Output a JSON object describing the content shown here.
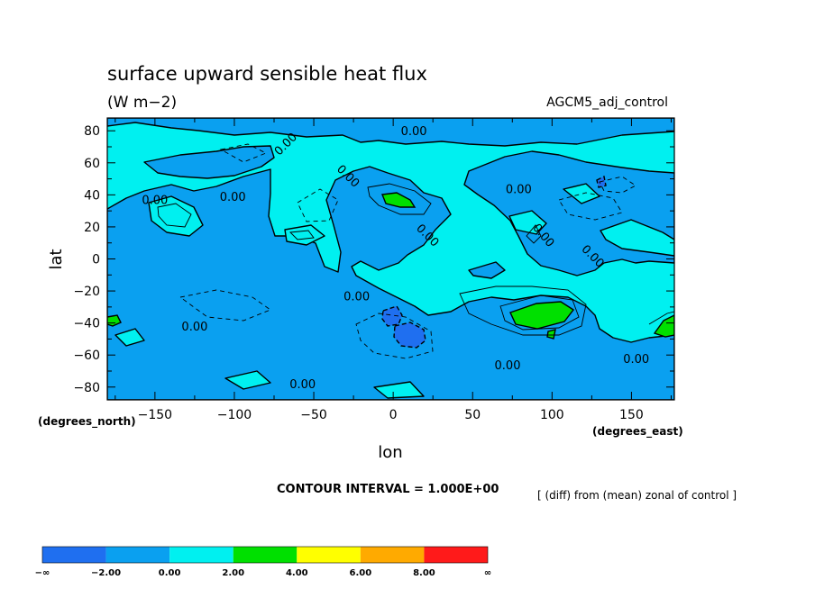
{
  "chart_data": {
    "type": "heatmap",
    "title": "surface upward sensible heat flux",
    "units": "(W m−2)",
    "run_label": "AGCM5_adj_control",
    "xlabel": "lon",
    "ylabel": "lat",
    "x_units": "(degrees_east)",
    "y_units": "(degrees_north)",
    "xlim": [
      -180,
      177
    ],
    "ylim": [
      -88,
      88
    ],
    "x_ticks": [
      -150,
      -100,
      -50,
      0,
      50,
      100,
      150
    ],
    "x_tick_labels": [
      "−150",
      "−100",
      "−50",
      "0",
      "50",
      "100",
      "150"
    ],
    "y_ticks": [
      80,
      60,
      40,
      20,
      0,
      -20,
      -40,
      -60,
      -80
    ],
    "y_tick_labels": [
      "80",
      "60",
      "40",
      "20",
      "0",
      "−20",
      "−40",
      "−60",
      "−80"
    ],
    "contour_interval": "CONTOUR INTERVAL = 1.000E+00",
    "note": "[ (diff) from (mean) zonal of control ]",
    "contour_labels": [
      {
        "text": "0.00",
        "lon": 13,
        "lat": 80
      },
      {
        "text": "0.00",
        "lon": -68,
        "lat": 72,
        "angle": 45
      },
      {
        "text": "0.00",
        "lon": -150,
        "lat": 37
      },
      {
        "text": "0.00",
        "lon": -101,
        "lat": 39
      },
      {
        "text": "0.00",
        "lon": -28,
        "lat": 52,
        "angle": -45
      },
      {
        "text": "0.00",
        "lon": 22,
        "lat": 15,
        "angle": -45
      },
      {
        "text": "0.00",
        "lon": 79,
        "lat": 44
      },
      {
        "text": "0.00",
        "lon": 95,
        "lat": 15,
        "angle": -50
      },
      {
        "text": "0.00",
        "lon": 126,
        "lat": 2,
        "angle": -45
      },
      {
        "text": "0.00",
        "lon": -23,
        "lat": -23
      },
      {
        "text": "0.00",
        "lon": -125,
        "lat": -42
      },
      {
        "text": "0.00",
        "lon": 72,
        "lat": -66
      },
      {
        "text": "0.00",
        "lon": 153,
        "lat": -62
      },
      {
        "text": "0.00",
        "lon": -57,
        "lat": -78
      }
    ],
    "colorbar": {
      "levels": [
        "−∞",
        "−2.00",
        "0.00",
        "2.00",
        "4.00",
        "6.00",
        "8.00",
        "∞"
      ],
      "colors": [
        "#1f6ff0",
        "#0aa0f0",
        "#00f0f0",
        "#00e000",
        "#ffff00",
        "#ffaa00",
        "#ff1a1a"
      ]
    },
    "field_colors": {
      "neg_strong": "#1f6ff0",
      "neg": "#0aa0f0",
      "pos": "#00f0f0",
      "pos_high": "#00e000"
    }
  }
}
